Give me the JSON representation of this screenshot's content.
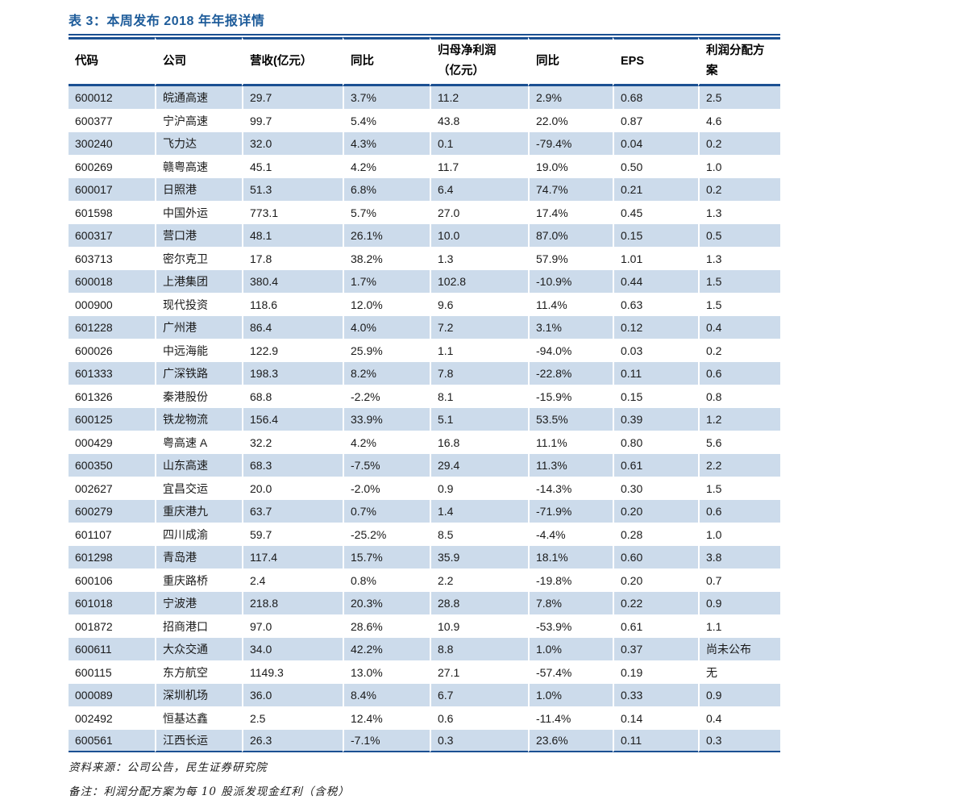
{
  "page": {
    "title": "表 3：本周发布 2018 年年报详情"
  },
  "colors": {
    "line_blue": "#1b5092",
    "title_blue": "#1e5c9a",
    "stripe_blue": "#ccdbeb"
  },
  "table": {
    "headers": [
      "代码",
      "公司",
      "营收(亿元）",
      "同比",
      "归母净利润\n（亿元）",
      "同比",
      "EPS",
      "利润分配方案"
    ],
    "rows": [
      [
        "600012",
        "皖通高速",
        "29.7",
        "3.7%",
        "11.2",
        "2.9%",
        "0.68",
        "2.5"
      ],
      [
        "600377",
        "宁沪高速",
        "99.7",
        "5.4%",
        "43.8",
        "22.0%",
        "0.87",
        "4.6"
      ],
      [
        "300240",
        "飞力达",
        "32.0",
        "4.3%",
        "0.1",
        "-79.4%",
        "0.04",
        "0.2"
      ],
      [
        "600269",
        "赣粤高速",
        "45.1",
        "4.2%",
        "11.7",
        "19.0%",
        "0.50",
        "1.0"
      ],
      [
        "600017",
        "日照港",
        "51.3",
        "6.8%",
        "6.4",
        "74.7%",
        "0.21",
        "0.2"
      ],
      [
        "601598",
        "中国外运",
        "773.1",
        "5.7%",
        "27.0",
        "17.4%",
        "0.45",
        "1.3"
      ],
      [
        "600317",
        "营口港",
        "48.1",
        "26.1%",
        "10.0",
        "87.0%",
        "0.15",
        "0.5"
      ],
      [
        "603713",
        "密尔克卫",
        "17.8",
        "38.2%",
        "1.3",
        "57.9%",
        "1.01",
        "1.3"
      ],
      [
        "600018",
        "上港集团",
        "380.4",
        "1.7%",
        "102.8",
        "-10.9%",
        "0.44",
        "1.5"
      ],
      [
        "000900",
        "现代投资",
        "118.6",
        "12.0%",
        "9.6",
        "11.4%",
        "0.63",
        "1.5"
      ],
      [
        "601228",
        "广州港",
        "86.4",
        "4.0%",
        "7.2",
        "3.1%",
        "0.12",
        "0.4"
      ],
      [
        "600026",
        "中远海能",
        "122.9",
        "25.9%",
        "1.1",
        "-94.0%",
        "0.03",
        "0.2"
      ],
      [
        "601333",
        "广深铁路",
        "198.3",
        "8.2%",
        "7.8",
        "-22.8%",
        "0.11",
        "0.6"
      ],
      [
        "601326",
        "秦港股份",
        "68.8",
        "-2.2%",
        "8.1",
        "-15.9%",
        "0.15",
        "0.8"
      ],
      [
        "600125",
        "铁龙物流",
        "156.4",
        "33.9%",
        "5.1",
        "53.5%",
        "0.39",
        "1.2"
      ],
      [
        "000429",
        "粤高速 A",
        "32.2",
        "4.2%",
        "16.8",
        "11.1%",
        "0.80",
        "5.6"
      ],
      [
        "600350",
        "山东高速",
        "68.3",
        "-7.5%",
        "29.4",
        "11.3%",
        "0.61",
        "2.2"
      ],
      [
        "002627",
        "宜昌交运",
        "20.0",
        "-2.0%",
        "0.9",
        "-14.3%",
        "0.30",
        "1.5"
      ],
      [
        "600279",
        "重庆港九",
        "63.7",
        "0.7%",
        "1.4",
        "-71.9%",
        "0.20",
        "0.6"
      ],
      [
        "601107",
        "四川成渝",
        "59.7",
        "-25.2%",
        "8.5",
        "-4.4%",
        "0.28",
        "1.0"
      ],
      [
        "601298",
        "青岛港",
        "117.4",
        "15.7%",
        "35.9",
        "18.1%",
        "0.60",
        "3.8"
      ],
      [
        "600106",
        "重庆路桥",
        "2.4",
        "0.8%",
        "2.2",
        "-19.8%",
        "0.20",
        "0.7"
      ],
      [
        "601018",
        "宁波港",
        "218.8",
        "20.3%",
        "28.8",
        "7.8%",
        "0.22",
        "0.9"
      ],
      [
        "001872",
        "招商港口",
        "97.0",
        "28.6%",
        "10.9",
        "-53.9%",
        "0.61",
        "1.1"
      ],
      [
        "600611",
        "大众交通",
        "34.0",
        "42.2%",
        "8.8",
        "1.0%",
        "0.37",
        "尚未公布"
      ],
      [
        "600115",
        "东方航空",
        "1149.3",
        "13.0%",
        "27.1",
        "-57.4%",
        "0.19",
        "无"
      ],
      [
        "000089",
        "深圳机场",
        "36.0",
        "8.4%",
        "6.7",
        "1.0%",
        "0.33",
        "0.9"
      ],
      [
        "002492",
        "恒基达鑫",
        "2.5",
        "12.4%",
        "0.6",
        "-11.4%",
        "0.14",
        "0.4"
      ],
      [
        "600561",
        "江西长运",
        "26.3",
        "-7.1%",
        "0.3",
        "23.6%",
        "0.11",
        "0.3"
      ]
    ]
  },
  "footer": {
    "source": "资料来源：公司公告，民生证券研究院",
    "note": "备注：利润分配方案为每 10 股派发现金红利（含税）"
  }
}
